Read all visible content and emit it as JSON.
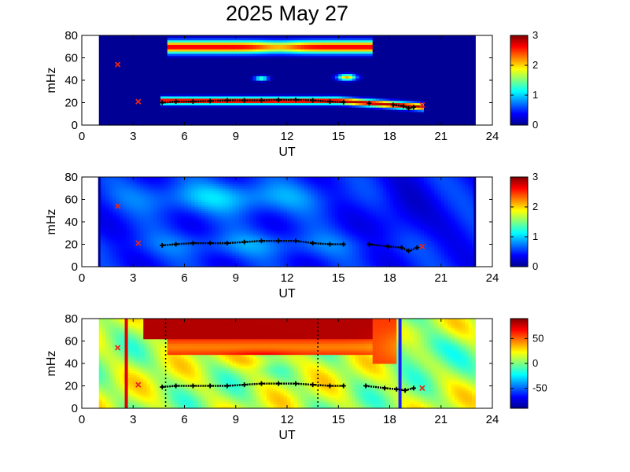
{
  "page": {
    "title": "2025 May 27"
  },
  "colors": {
    "spectral_min": "#00008f",
    "spectral_max": "#800000",
    "frequency_track": "#000000",
    "harmonic_marker": "#e8261a",
    "start_marker": "#e00000",
    "end_marker": "#1a1aff"
  },
  "chart_data": [
    {
      "type": "heatmap",
      "name": "panel-1",
      "xlabel": "UT",
      "ylabel": "mHz",
      "xlim": [
        0,
        24
      ],
      "ylim": [
        0,
        80
      ],
      "xticks": [
        "0",
        "3",
        "6",
        "9",
        "12",
        "15",
        "18",
        "21",
        "24"
      ],
      "yticks": [
        "0",
        "20",
        "40",
        "60",
        "80"
      ],
      "data_range_ut": [
        1.0,
        23.0
      ],
      "colorbar": {
        "range": [
          0,
          3
        ],
        "ticks": [
          "0",
          "1",
          "2",
          "3"
        ]
      },
      "track_points": [
        [
          4.7,
          20
        ],
        [
          5.5,
          21
        ],
        [
          6.5,
          21
        ],
        [
          7.5,
          21.5
        ],
        [
          8.5,
          22
        ],
        [
          9.5,
          22
        ],
        [
          10.5,
          22
        ],
        [
          11.5,
          22.5
        ],
        [
          12.5,
          22.5
        ],
        [
          13.5,
          22
        ],
        [
          14.5,
          21
        ],
        [
          15.3,
          20.5
        ],
        [
          16.8,
          19.5
        ],
        [
          18.2,
          18
        ],
        [
          18.8,
          17
        ],
        [
          19.1,
          15
        ],
        [
          19.4,
          16
        ]
      ],
      "red_markers": [
        [
          2.1,
          54
        ],
        [
          3.3,
          21
        ],
        [
          19.9,
          18
        ]
      ]
    },
    {
      "type": "heatmap",
      "name": "panel-2",
      "xlabel": "UT",
      "ylabel": "mHz",
      "xlim": [
        0,
        24
      ],
      "ylim": [
        0,
        80
      ],
      "xticks": [
        "0",
        "3",
        "6",
        "9",
        "12",
        "15",
        "18",
        "21",
        "24"
      ],
      "yticks": [
        "0",
        "20",
        "40",
        "60",
        "80"
      ],
      "data_range_ut": [
        1.0,
        23.0
      ],
      "colorbar": {
        "range": [
          0,
          3
        ],
        "ticks": [
          "0",
          "1",
          "2",
          "3"
        ]
      },
      "track_points": [
        [
          4.7,
          19
        ],
        [
          5.5,
          20
        ],
        [
          6.5,
          21
        ],
        [
          7.5,
          21
        ],
        [
          8.5,
          21
        ],
        [
          9.5,
          22
        ],
        [
          10.5,
          23
        ],
        [
          11.5,
          23
        ],
        [
          12.5,
          23
        ],
        [
          13.5,
          21
        ],
        [
          14.5,
          20
        ],
        [
          15.3,
          20
        ],
        [
          16.8,
          20
        ],
        [
          17.9,
          18
        ],
        [
          18.7,
          17
        ],
        [
          19.1,
          14
        ],
        [
          19.6,
          17
        ]
      ],
      "red_markers": [
        [
          2.1,
          54
        ],
        [
          3.3,
          21
        ],
        [
          19.9,
          18
        ]
      ]
    },
    {
      "type": "heatmap",
      "name": "panel-3",
      "xlabel": "UT",
      "ylabel": "mHz",
      "xlim": [
        0,
        24
      ],
      "ylim": [
        0,
        80
      ],
      "xticks": [
        "0",
        "3",
        "6",
        "9",
        "12",
        "15",
        "18",
        "21",
        "24"
      ],
      "yticks": [
        "0",
        "20",
        "40",
        "60",
        "80"
      ],
      "data_range_ut": [
        1.0,
        23.0
      ],
      "colorbar": {
        "range": [
          -90,
          90
        ],
        "ticks": [
          "50",
          "0",
          "-50"
        ],
        "tick_values": [
          50,
          0,
          -50
        ]
      },
      "track_points": [
        [
          4.7,
          19
        ],
        [
          5.5,
          20
        ],
        [
          6.5,
          20
        ],
        [
          7.5,
          20
        ],
        [
          8.5,
          20
        ],
        [
          9.5,
          21
        ],
        [
          10.5,
          22
        ],
        [
          11.5,
          22
        ],
        [
          12.5,
          22
        ],
        [
          13.5,
          21
        ],
        [
          14.5,
          20
        ],
        [
          15.3,
          20
        ],
        [
          16.6,
          20
        ],
        [
          17.7,
          18
        ],
        [
          18.4,
          17
        ],
        [
          18.9,
          16
        ],
        [
          19.4,
          18
        ]
      ],
      "red_markers": [
        [
          2.1,
          54
        ],
        [
          3.3,
          21
        ],
        [
          19.9,
          18
        ]
      ],
      "vertical_lines": [
        {
          "ut": 2.6,
          "style": "solid",
          "color": "#e00000"
        },
        {
          "ut": 4.9,
          "style": "dotted",
          "color": "#000000"
        },
        {
          "ut": 13.8,
          "style": "dotted",
          "color": "#000000"
        },
        {
          "ut": 18.6,
          "style": "solid",
          "color": "#1a1aff"
        }
      ]
    }
  ]
}
